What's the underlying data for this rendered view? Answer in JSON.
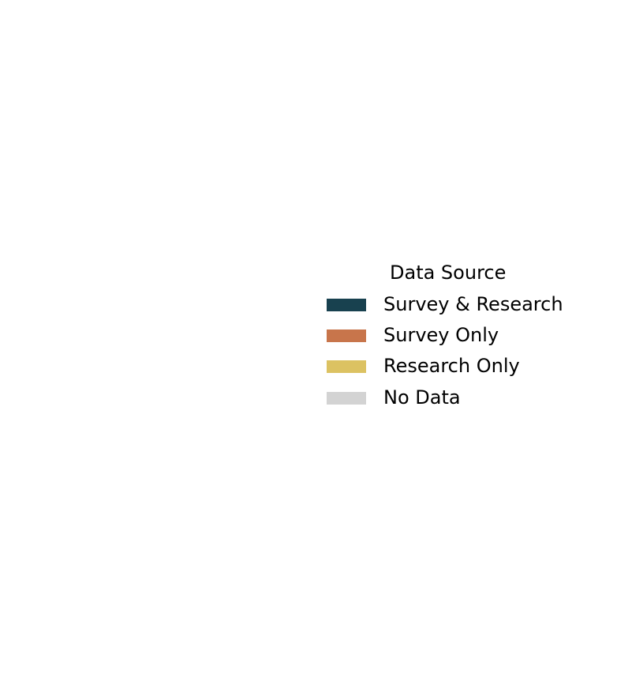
{
  "chart_data": {
    "type": "legend",
    "legend": {
      "title": "Data Source",
      "placement": "right",
      "entries": [
        {
          "label": "Survey & Research",
          "color": "#18414f"
        },
        {
          "label": "Survey Only",
          "color": "#c8754b"
        },
        {
          "label": "Research Only",
          "color": "#dcc262"
        },
        {
          "label": "No Data",
          "color": "#d3d3d3"
        }
      ]
    }
  }
}
